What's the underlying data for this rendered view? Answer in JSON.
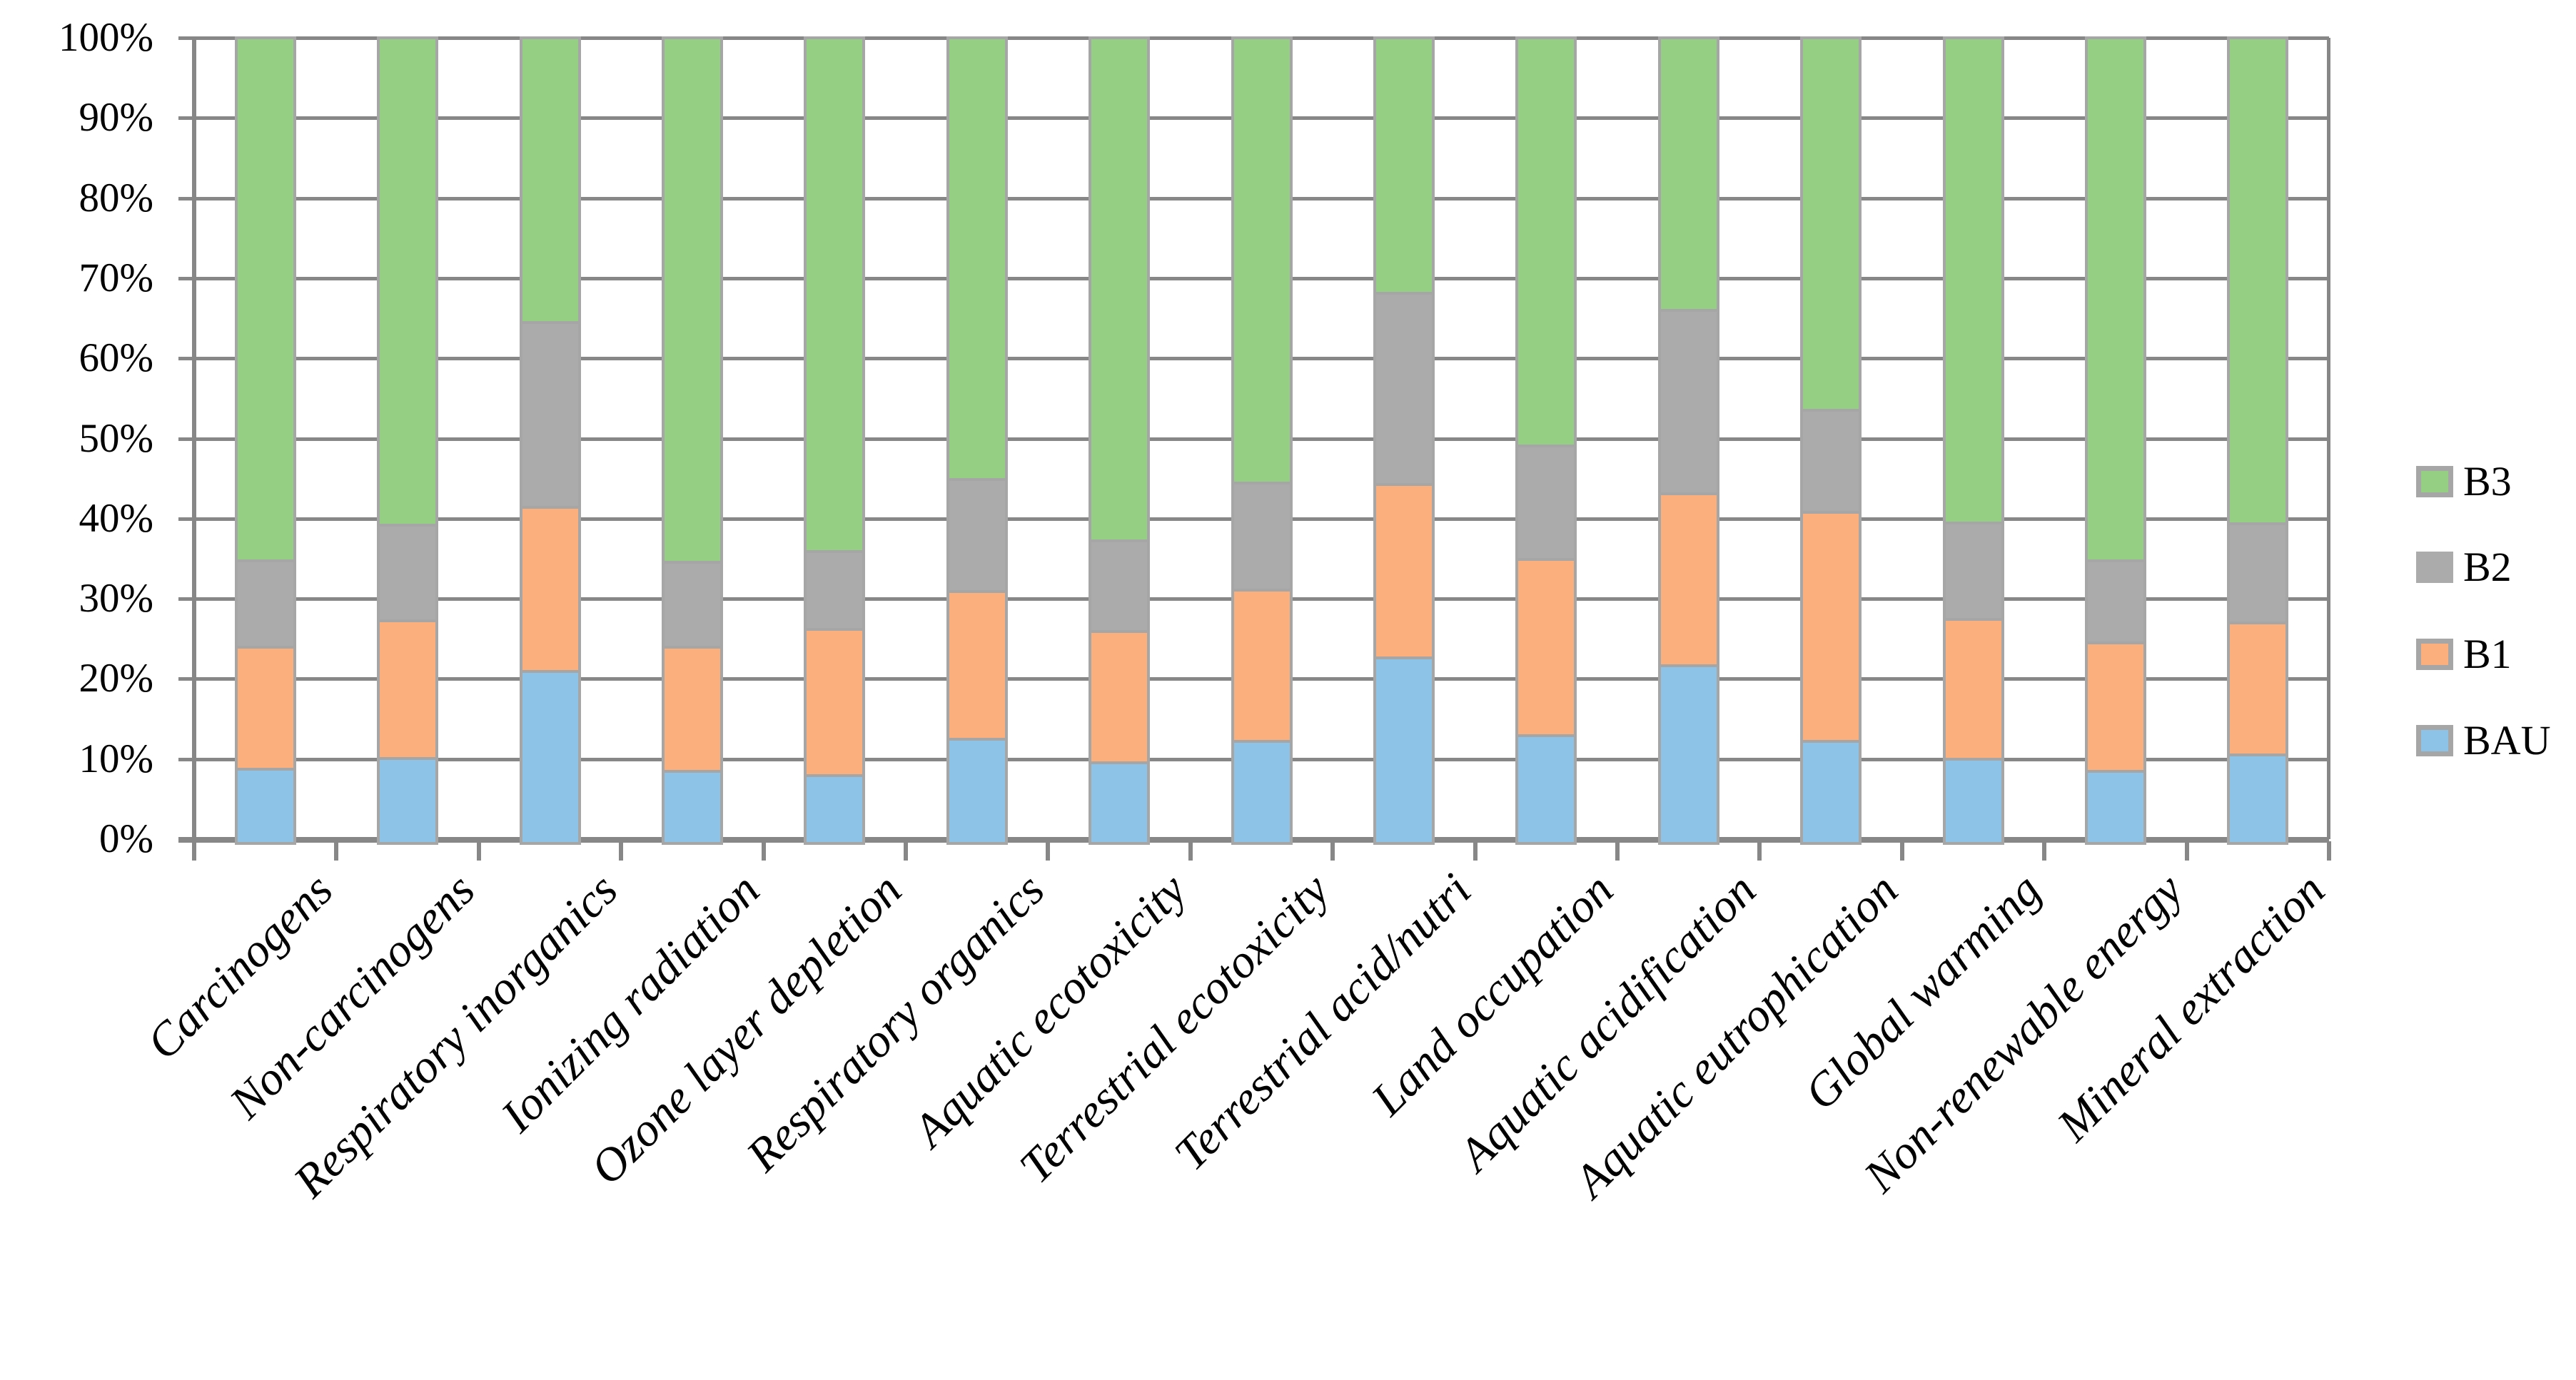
{
  "chart_data": {
    "type": "bar",
    "stacked": true,
    "percent_stacked": true,
    "title": "",
    "xlabel": "",
    "ylabel": "",
    "ylim": [
      0,
      100
    ],
    "grid": true,
    "legend_position": "right",
    "categories": [
      "Carcinogens",
      "Non-carcinogens",
      "Respiratory inorganics",
      "Ionizing radiation",
      "Ozone layer depletion",
      "Respiratory organics",
      "Aquatic ecotoxicity",
      "Terrestrial ecotoxicity",
      "Terrestrial acid/nutri",
      "Land occupation",
      "Aquatic acidification",
      "Aquatic eutrophication",
      "Global warming",
      "Non-renewable energy",
      "Mineral extraction"
    ],
    "series": [
      {
        "name": "BAU",
        "color": "#8DC3E7",
        "values": [
          9.0,
          10.3,
          21.3,
          8.7,
          8.2,
          12.8,
          9.8,
          12.5,
          23.0,
          13.2,
          22.0,
          12.5,
          10.2,
          8.7,
          10.8
        ]
      },
      {
        "name": "B1",
        "color": "#FBAF7C",
        "values": [
          15.0,
          17.0,
          20.3,
          15.3,
          18.0,
          18.2,
          16.2,
          18.7,
          21.5,
          21.8,
          21.3,
          28.5,
          17.3,
          15.8,
          16.2
        ]
      },
      {
        "name": "B2",
        "color": "#ABABAB",
        "values": [
          10.5,
          11.7,
          22.9,
          10.3,
          9.5,
          13.7,
          11.0,
          13.1,
          23.7,
          14.0,
          22.7,
          12.5,
          11.8,
          10.0,
          12.2
        ]
      },
      {
        "name": "B3",
        "color": "#95CF83",
        "values": [
          65.5,
          61.0,
          35.5,
          65.7,
          64.3,
          55.3,
          63.0,
          55.7,
          31.8,
          51.0,
          34.0,
          46.5,
          60.7,
          65.5,
          60.8
        ]
      }
    ],
    "legend": [
      "B3",
      "B2",
      "B1",
      "BAU"
    ],
    "y_ticks": [
      "100%",
      "90%",
      "80%",
      "70%",
      "60%",
      "50%",
      "40%",
      "30%",
      "20%",
      "10%",
      "0%"
    ]
  },
  "colors": {
    "grid": "#878787",
    "axis": "#878787",
    "bar_border": "#A6A6A6",
    "background": "#FFFFFF"
  }
}
